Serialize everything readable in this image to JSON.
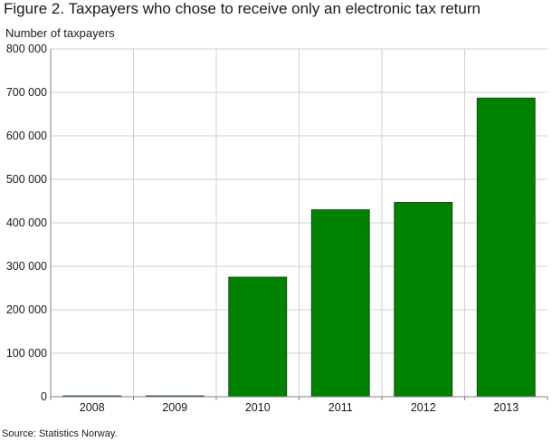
{
  "title": "Figure 2. Taxpayers who chose to receive only an electronic tax return",
  "source": "Source: Statistics Norway.",
  "colors": {
    "bar": "#008200",
    "bar_edge": "#0b3d0b",
    "grid": "#d0d0d0",
    "axis": "#808080"
  },
  "chart_data": {
    "type": "bar",
    "title": "Figure 2. Taxpayers who chose to receive only an electronic tax return",
    "xlabel": "",
    "ylabel": "Number of taxpayers",
    "categories": [
      "2008",
      "2009",
      "2010",
      "2011",
      "2012",
      "2013"
    ],
    "values": [
      0,
      0,
      275000,
      430000,
      447000,
      687000
    ],
    "ylim": [
      0,
      800000
    ],
    "yticks": [
      0,
      100000,
      200000,
      300000,
      400000,
      500000,
      600000,
      700000,
      800000
    ],
    "ytick_labels": [
      "0",
      "100 000",
      "200 000",
      "300 000",
      "400 000",
      "500 000",
      "600 000",
      "700 000",
      "800 000"
    ],
    "grid": true,
    "legend": "none"
  }
}
